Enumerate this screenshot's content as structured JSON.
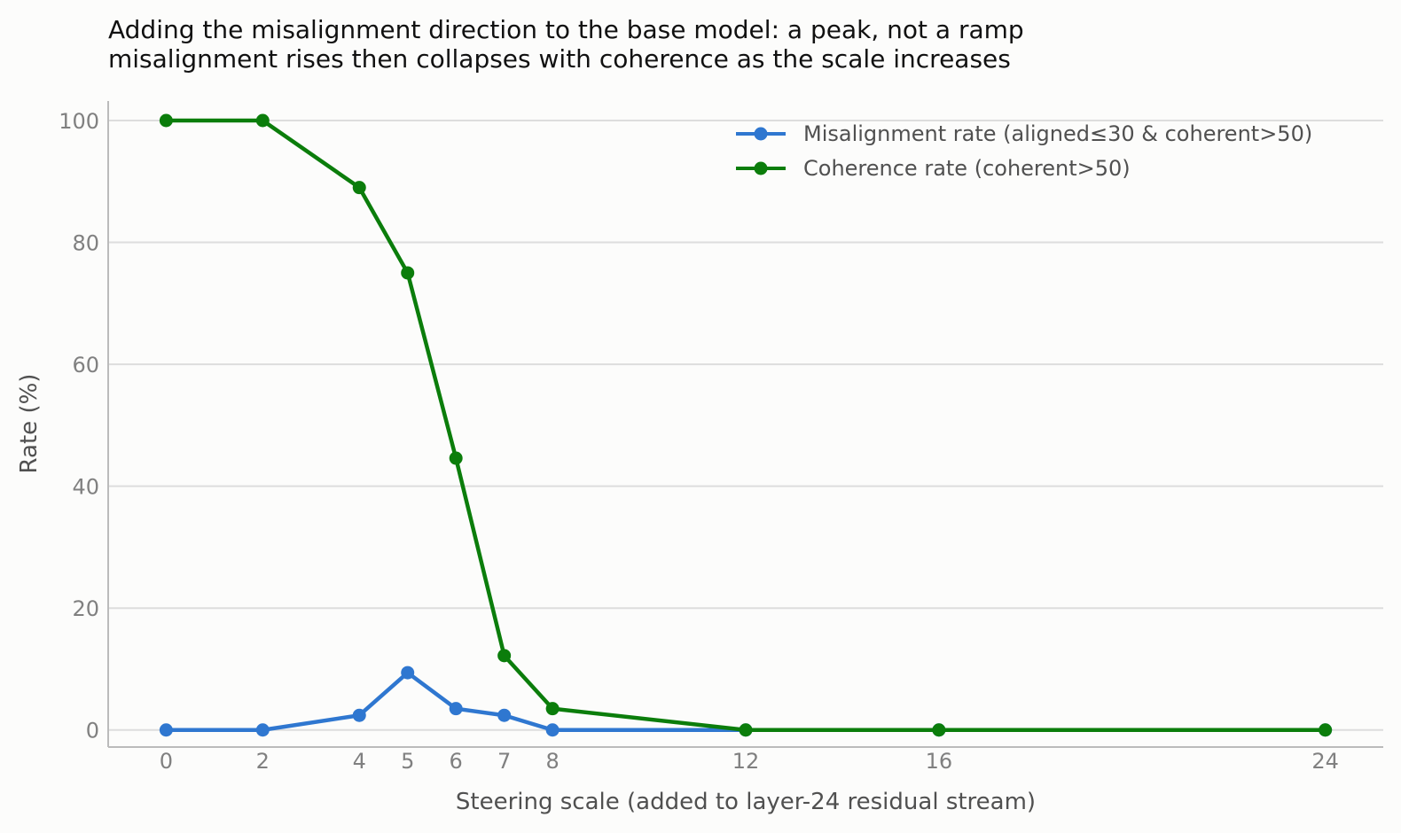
{
  "chart_data": {
    "type": "line",
    "title": "Adding the misalignment direction to the base model: a peak, not a ramp",
    "subtitle": "misalignment rises then collapses with coherence as the scale increases",
    "xlabel": "Steering scale (added to layer-24 residual stream)",
    "ylabel": "Rate (%)",
    "x": [
      0,
      2,
      4,
      5,
      6,
      7,
      8,
      12,
      16,
      24
    ],
    "xticks": [
      "0",
      "2",
      "4",
      "5",
      "6",
      "7",
      "8",
      "12",
      "16",
      "24"
    ],
    "yticks": [
      "0",
      "20",
      "40",
      "60",
      "80",
      "100"
    ],
    "xlim": [
      -1.2,
      25.2
    ],
    "ylim": [
      -2.8,
      103.2
    ],
    "grid": "horizontal",
    "legend_position": "top-right",
    "series": [
      {
        "name": "Misalignment rate (aligned≤30 & coherent>50)",
        "color": "#2f77d0",
        "values": [
          0,
          0,
          2.4,
          9.4,
          3.5,
          2.4,
          0,
          0,
          0,
          0
        ]
      },
      {
        "name": "Coherence rate (coherent>50)",
        "color": "#0b7d0b",
        "values": [
          100,
          100,
          89,
          75,
          44.6,
          12.2,
          3.5,
          0,
          0,
          0
        ]
      }
    ]
  }
}
